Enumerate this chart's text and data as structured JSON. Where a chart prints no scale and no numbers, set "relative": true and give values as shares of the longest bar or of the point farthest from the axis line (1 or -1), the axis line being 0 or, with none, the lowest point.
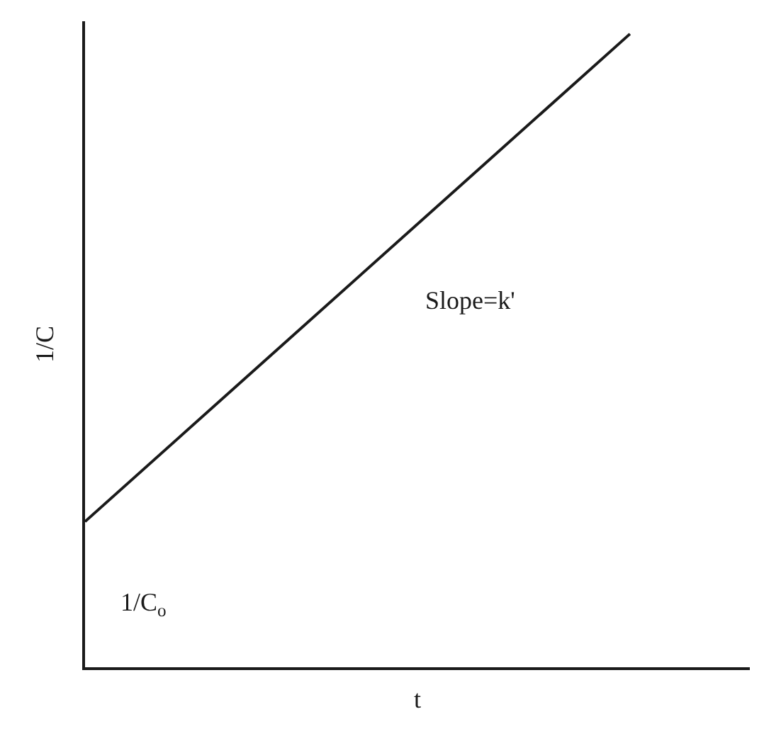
{
  "chart_data": {
    "type": "line",
    "relative": true,
    "xlabel": "t",
    "ylabel": "1/C",
    "categories": [
      null,
      null
    ],
    "series": [
      {
        "color": "#1a1a1a",
        "values": [
          0.23,
          1
        ]
      }
    ],
    "annotations": [
      "Slope=k'",
      "1/C$_{o}$"
    ],
    "tick_labels": false,
    "marker": "none",
    "line_style": "solid"
  }
}
